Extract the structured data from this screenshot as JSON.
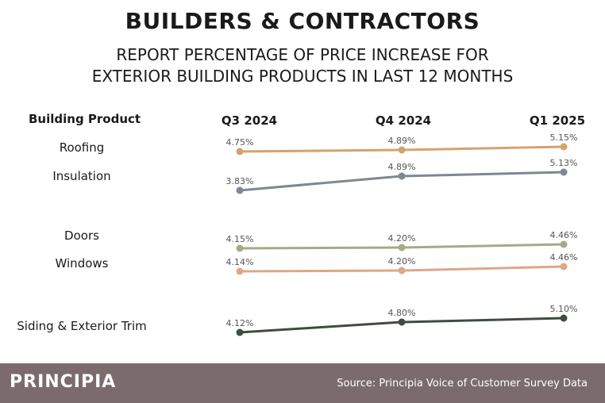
{
  "header": {
    "title": "BUILDERS & CONTRACTORS",
    "subtitle_line1": "REPORT PERCENTAGE OF PRICE INCREASE FOR",
    "subtitle_line2": "EXTERIOR BUILDING PRODUCTS IN LAST 12 MONTHS"
  },
  "table": {
    "product_header": "Building Product"
  },
  "chart_data": {
    "type": "line",
    "categories": [
      "Q3 2024",
      "Q4 2024",
      "Q1 2025"
    ],
    "series": [
      {
        "name": "Roofing",
        "values": [
          4.75,
          4.89,
          5.15
        ],
        "labels": [
          "4.75%",
          "4.89%",
          "5.15%"
        ],
        "color": "#d2a46d"
      },
      {
        "name": "Insulation",
        "values": [
          3.83,
          4.89,
          5.13
        ],
        "labels": [
          "3.83%",
          "4.89%",
          "5.13%"
        ],
        "color": "#7f8792"
      },
      {
        "name": "Doors",
        "values": [
          4.15,
          4.2,
          4.46
        ],
        "labels": [
          "4.15%",
          "4.20%",
          "4.46%"
        ],
        "color": "#a3ac86"
      },
      {
        "name": "Windows",
        "values": [
          4.14,
          4.2,
          4.46
        ],
        "labels": [
          "4.14%",
          "4.20%",
          "4.46%"
        ],
        "color": "#dba88a"
      },
      {
        "name": "Siding & Exterior Trim",
        "values": [
          4.12,
          4.8,
          5.1
        ],
        "labels": [
          "4.12%",
          "4.80%",
          "5.10%"
        ],
        "color": "#3e4d40"
      }
    ]
  },
  "footer": {
    "brand": "PRINCIPIA",
    "source": "Source: Principia Voice of Customer Survey Data"
  }
}
